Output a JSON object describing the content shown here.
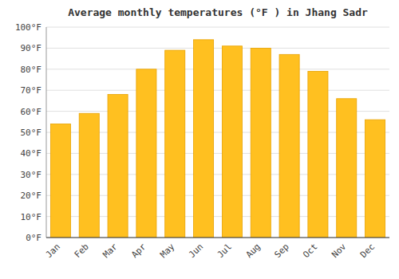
{
  "chart_data": {
    "type": "bar",
    "title": "Average monthly temperatures (°F ) in Jhang Sadr",
    "categories": [
      "Jan",
      "Feb",
      "Mar",
      "Apr",
      "May",
      "Jun",
      "Jul",
      "Aug",
      "Sep",
      "Oct",
      "Nov",
      "Dec"
    ],
    "values": [
      54,
      59,
      68,
      80,
      89,
      94,
      91,
      90,
      87,
      79,
      66,
      56
    ],
    "color": "#FFC020",
    "ylim": [
      0,
      100
    ],
    "yticks": [
      {
        "value": 0,
        "label": "0°F"
      },
      {
        "value": 10,
        "label": "10°F"
      },
      {
        "value": 20,
        "label": "20°F"
      },
      {
        "value": 30,
        "label": "30°F"
      },
      {
        "value": 40,
        "label": "40°F"
      },
      {
        "value": 50,
        "label": "50°F"
      },
      {
        "value": 60,
        "label": "60°F"
      },
      {
        "value": 70,
        "label": "70°F"
      },
      {
        "value": 80,
        "label": "80°F"
      },
      {
        "value": 90,
        "label": "90°F"
      },
      {
        "value": 100,
        "label": "100°F"
      }
    ],
    "grid": true
  }
}
